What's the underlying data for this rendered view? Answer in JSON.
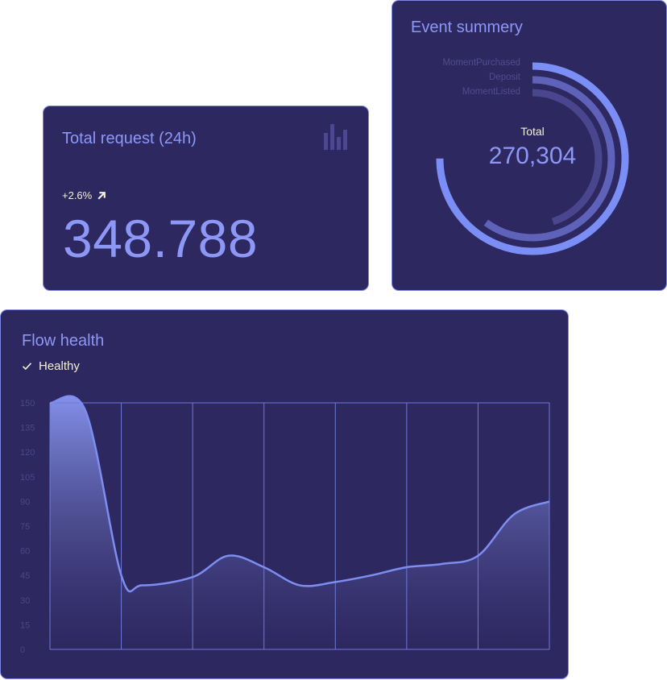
{
  "total_request": {
    "title": "Total request (24h)",
    "icon": "bar-chart-icon",
    "change": "+2.6%",
    "change_icon": "arrow-up-right-icon",
    "value": "348.788"
  },
  "event_summary": {
    "title": "Event summery",
    "legend": [
      "MomentPurchased",
      "Deposit",
      "MomentListed"
    ],
    "center_label": "Total",
    "center_value": "270,304",
    "ring_values": [
      0.75,
      0.6,
      0.45
    ],
    "colors": {
      "ring1": "#7b8ef6",
      "ring2": "#5e62b8",
      "ring3": "#4a468d"
    }
  },
  "flow_health": {
    "title": "Flow health",
    "status": "Healthy",
    "status_icon": "check-icon"
  },
  "chart_data": {
    "type": "area",
    "x": [
      0,
      0.5,
      1,
      1.3,
      2,
      2.5,
      3,
      3.5,
      4,
      4.5,
      5,
      5.5,
      6,
      6.5,
      7
    ],
    "values": [
      150,
      145,
      45,
      39,
      44,
      57,
      50,
      39,
      41,
      45,
      50,
      52,
      57,
      82,
      90
    ],
    "yticks": [
      150,
      135,
      120,
      105,
      90,
      75,
      60,
      45,
      30,
      15,
      0
    ],
    "ylim": [
      0,
      150
    ],
    "xlim": [
      0,
      7
    ],
    "grid": true,
    "colors": {
      "line": "#7e8df0",
      "fill_top": "#8896f0",
      "fill_bottom": "#2e2861"
    }
  }
}
